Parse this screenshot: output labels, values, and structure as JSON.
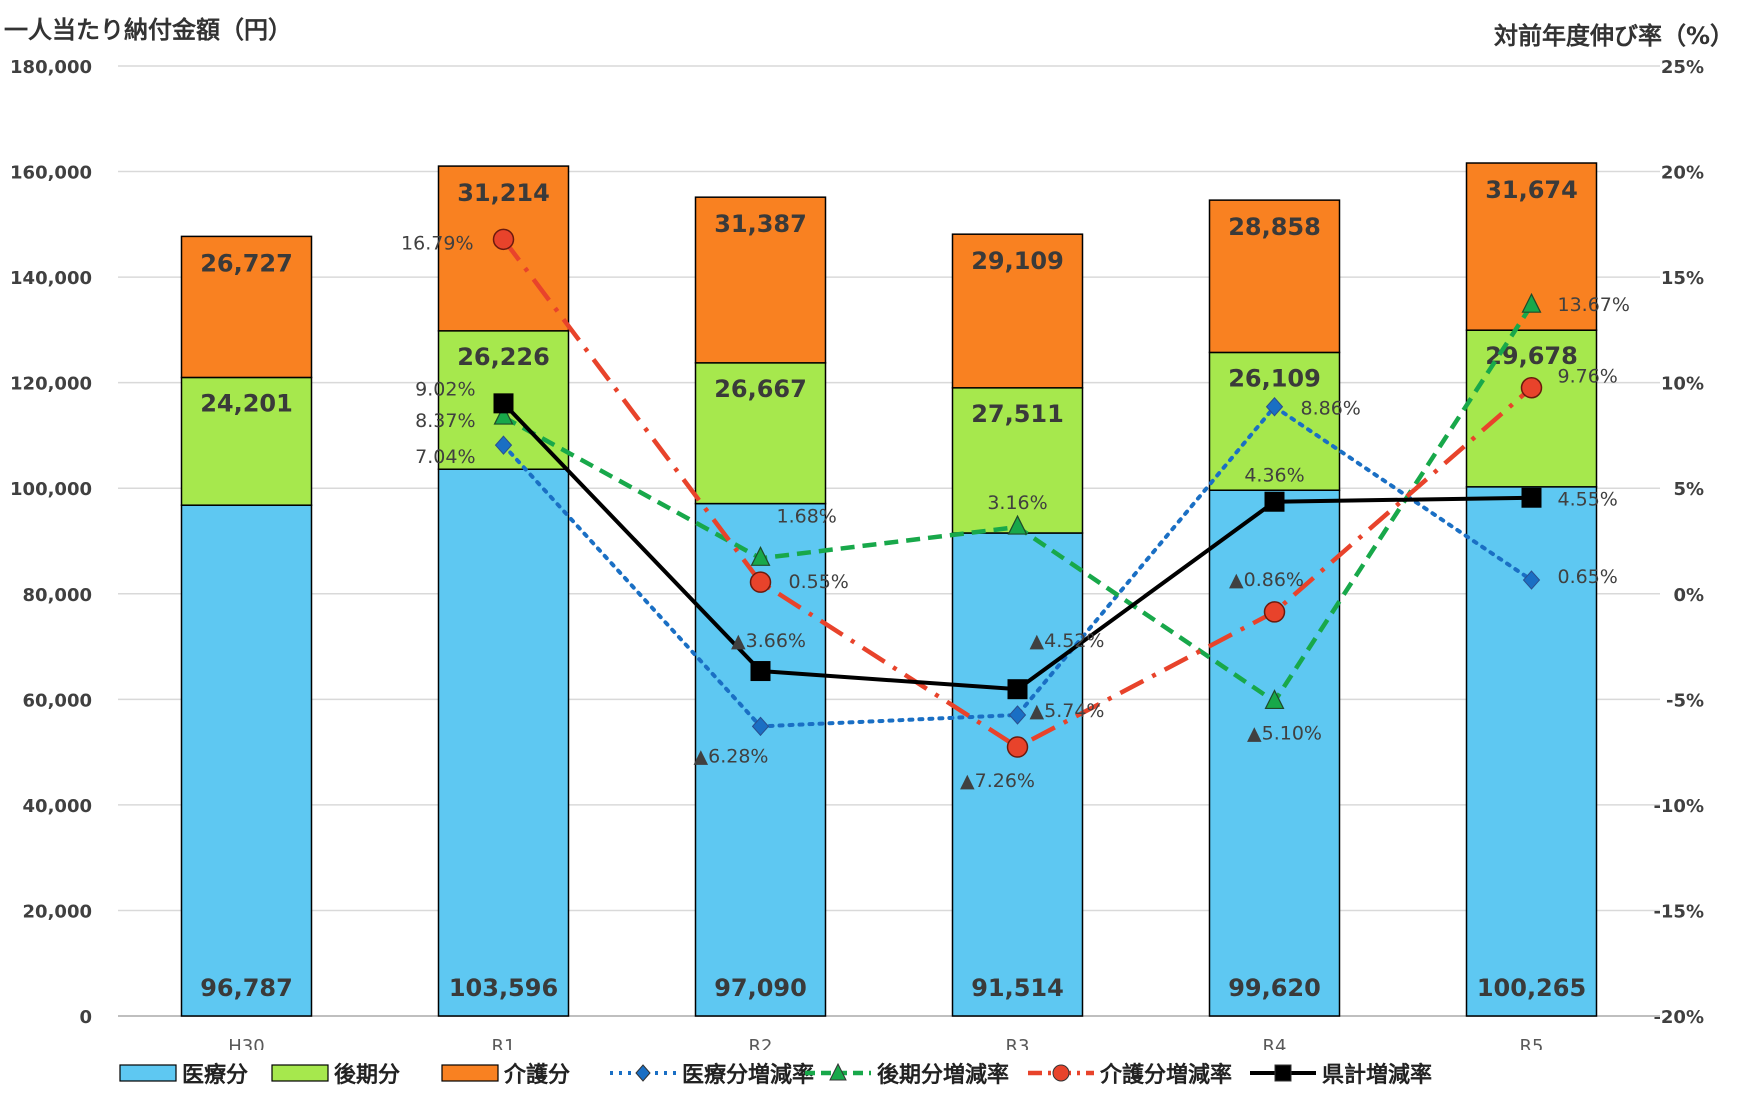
{
  "chart_data": {
    "type": "bar",
    "categories": [
      "H30",
      "R1",
      "R2",
      "R3",
      "R4",
      "R5"
    ],
    "ylabel_left": "一人当たり納付金額（円）",
    "ylabel_right": "対前年度伸び率（%）",
    "ylim_left": [
      0,
      180000
    ],
    "yticks_left": [
      "0",
      "20,000",
      "40,000",
      "60,000",
      "80,000",
      "100,000",
      "120,000",
      "140,000",
      "160,000",
      "180,000"
    ],
    "ylim_right": [
      -20,
      25
    ],
    "yticks_right": [
      "-20%",
      "-15%",
      "-10%",
      "-5%",
      "0%",
      "5%",
      "10%",
      "15%",
      "20%",
      "25%"
    ],
    "bar_series": [
      {
        "name": "医療分",
        "color": "#5ec8f2",
        "values": [
          96787,
          103596,
          97090,
          91514,
          99620,
          100265
        ],
        "labels": [
          "96,787",
          "103,596",
          "97,090",
          "91,514",
          "99,620",
          "100,265"
        ]
      },
      {
        "name": "後期分",
        "color": "#a6e84d",
        "values": [
          24201,
          26226,
          26667,
          27511,
          26109,
          29678
        ],
        "labels": [
          "24,201",
          "26,226",
          "26,667",
          "27,511",
          "26,109",
          "29,678"
        ]
      },
      {
        "name": "介護分",
        "color": "#f98121",
        "values": [
          26727,
          31214,
          31387,
          29109,
          28858,
          31674
        ],
        "labels": [
          "26,727",
          "31,214",
          "31,387",
          "29,109",
          "28,858",
          "31,674"
        ]
      }
    ],
    "line_series": [
      {
        "name": "医療分増減率",
        "color": "#1a6fc4",
        "style": "dotted",
        "marker": "diamond",
        "x": [
          "R1",
          "R2",
          "R3",
          "R4",
          "R5"
        ],
        "values": [
          7.04,
          -6.28,
          -5.74,
          8.86,
          0.65
        ],
        "labels": [
          "7.04%",
          "▲6.28%",
          "▲5.74%",
          "8.86%",
          "0.65%"
        ]
      },
      {
        "name": "後期分増減率",
        "color": "#18a84a",
        "style": "dashed",
        "marker": "triangle",
        "x": [
          "R1",
          "R2",
          "R3",
          "R4",
          "R5"
        ],
        "values": [
          8.37,
          1.68,
          3.16,
          -5.1,
          13.67
        ],
        "labels": [
          "8.37%",
          "1.68%",
          "3.16%",
          "▲5.10%",
          "13.67%"
        ]
      },
      {
        "name": "介護分増減率",
        "color": "#e8432b",
        "style": "dashdot",
        "marker": "circle",
        "x": [
          "R1",
          "R2",
          "R3",
          "R4",
          "R5"
        ],
        "values": [
          16.79,
          0.55,
          -7.26,
          -0.86,
          9.76
        ],
        "labels": [
          "16.79%",
          "0.55%",
          "▲7.26%",
          "▲0.86%",
          "9.76%"
        ]
      },
      {
        "name": "県計増減率",
        "color": "#000000",
        "style": "solid",
        "marker": "square",
        "x": [
          "R1",
          "R2",
          "R3",
          "R4",
          "R5"
        ],
        "values": [
          9.02,
          -3.66,
          -4.52,
          4.36,
          4.55
        ],
        "labels": [
          "9.02%",
          "▲3.66%",
          "▲4.52%",
          "4.36%",
          "4.55%"
        ]
      }
    ],
    "grid": true,
    "legend_position": "bottom"
  }
}
